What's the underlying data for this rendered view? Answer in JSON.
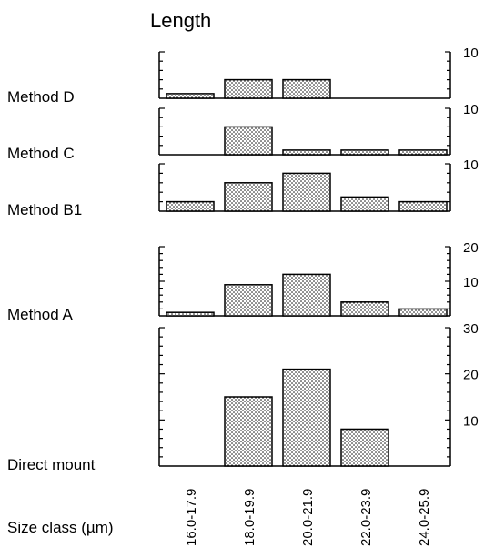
{
  "chart_data": {
    "type": "bar",
    "title": "Length",
    "xlabel": "Size class (µm)",
    "categories": [
      "16.0-17.9",
      "18.0-19.9",
      "20.0-21.9",
      "22.0-23.9",
      "24.0-25.9"
    ],
    "fill_pattern": "dotted",
    "bar_fill": "#ffffff",
    "dot_color": "#000000",
    "panels": [
      {
        "name": "Method D",
        "ylim": [
          0,
          10
        ],
        "yticks_labeled": [
          10
        ],
        "values": [
          1,
          4,
          4,
          0,
          0
        ]
      },
      {
        "name": "Method C",
        "ylim": [
          0,
          10
        ],
        "yticks_labeled": [
          10
        ],
        "values": [
          0,
          6,
          1,
          1,
          1
        ]
      },
      {
        "name": "Method B1",
        "ylim": [
          0,
          10
        ],
        "yticks_labeled": [
          10
        ],
        "values": [
          2,
          6,
          8,
          3,
          2
        ]
      },
      {
        "name": "Method A",
        "ylim": [
          0,
          20
        ],
        "yticks_labeled": [
          10,
          20
        ],
        "values": [
          1,
          9,
          12,
          4,
          2
        ]
      },
      {
        "name": "Direct mount",
        "ylim": [
          0,
          30
        ],
        "yticks_labeled": [
          10,
          20,
          30
        ],
        "values": [
          0,
          15,
          21,
          8,
          0
        ]
      }
    ]
  }
}
